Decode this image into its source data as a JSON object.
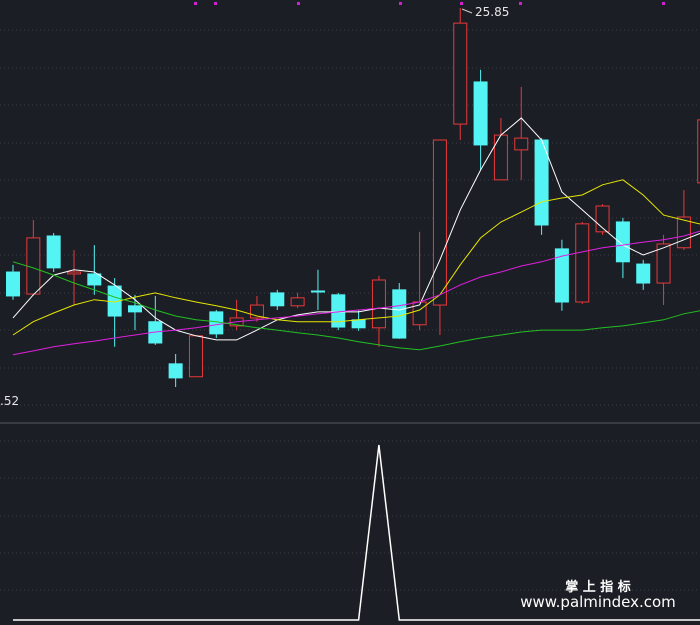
{
  "chart_data": [
    {
      "type": "candlestick",
      "open": [
        18.89,
        18.31,
        19.84,
        18.84,
        18.84,
        18.52,
        18.0,
        17.58,
        16.47,
        16.13,
        17.84,
        17.47,
        17.68,
        18.34,
        18.0,
        18.39,
        18.29,
        17.63,
        17.42,
        18.42,
        17.5,
        18.02,
        22.79,
        23.9,
        21.32,
        22.11,
        22.37,
        19.5,
        18.1,
        19.95,
        20.21,
        19.1,
        18.6,
        19.53,
        21.24
      ],
      "high": [
        19.08,
        20.26,
        19.92,
        19.47,
        19.6,
        18.73,
        18.29,
        18.26,
        16.73,
        17.21,
        17.89,
        18.16,
        18.26,
        18.42,
        18.34,
        18.95,
        18.34,
        17.89,
        18.79,
        18.6,
        19.95,
        22.37,
        25.85,
        24.22,
        22.95,
        23.77,
        22.42,
        19.74,
        20.21,
        20.68,
        20.32,
        19.21,
        19.87,
        21.05,
        23.03
      ],
      "low": [
        18.16,
        18.26,
        18.89,
        18.02,
        18.29,
        16.92,
        17.36,
        16.97,
        15.86,
        16.13,
        17.15,
        17.36,
        17.58,
        17.89,
        17.94,
        17.89,
        17.36,
        17.34,
        16.92,
        17.13,
        17.36,
        17.23,
        22.37,
        21.58,
        21.32,
        21.32,
        19.87,
        17.87,
        18.05,
        19.87,
        18.73,
        18.42,
        18.02,
        19.47,
        21.24
      ],
      "close": [
        18.26,
        19.79,
        19.0,
        18.89,
        18.55,
        17.73,
        17.84,
        17.02,
        16.1,
        17.21,
        17.26,
        17.68,
        18.02,
        18.0,
        18.21,
        18.37,
        17.44,
        17.42,
        18.68,
        17.15,
        18.1,
        22.37,
        25.45,
        22.24,
        22.5,
        22.42,
        20.13,
        18.1,
        20.16,
        20.63,
        19.16,
        18.6,
        19.63,
        20.34,
        22.9
      ],
      "up_color": "#e8393a",
      "down_color": "#54f4f4",
      "series": [
        {
          "color": "#ffffff",
          "values": [
            17.68,
            18.29,
            18.81,
            18.95,
            18.89,
            18.55,
            18.16,
            17.68,
            17.36,
            17.21,
            17.1,
            17.1,
            17.36,
            17.63,
            17.76,
            17.84,
            17.84,
            17.84,
            17.94,
            17.89,
            18.02,
            19.21,
            20.53,
            21.58,
            22.5,
            22.95,
            22.37,
            21.0,
            20.53,
            20.05,
            19.6,
            19.34,
            19.53,
            19.74,
            19.95
          ]
        },
        {
          "color": "#e6e600",
          "values": [
            17.23,
            17.58,
            17.81,
            18.02,
            18.16,
            18.1,
            18.23,
            18.34,
            18.21,
            18.1,
            18.0,
            17.89,
            17.73,
            17.63,
            17.58,
            17.58,
            17.58,
            17.63,
            17.68,
            17.73,
            17.89,
            18.29,
            19.08,
            19.79,
            20.21,
            20.47,
            20.74,
            20.84,
            20.92,
            21.19,
            21.32,
            20.92,
            20.39,
            20.26,
            20.13
          ]
        },
        {
          "color": "#e020e0",
          "values": [
            16.71,
            16.81,
            16.92,
            17.0,
            17.07,
            17.15,
            17.23,
            17.31,
            17.36,
            17.42,
            17.5,
            17.58,
            17.63,
            17.68,
            17.73,
            17.79,
            17.84,
            17.89,
            17.94,
            18.0,
            18.1,
            18.29,
            18.55,
            18.76,
            18.89,
            19.05,
            19.16,
            19.31,
            19.42,
            19.53,
            19.6,
            19.68,
            19.74,
            19.84,
            20.0
          ]
        },
        {
          "color": "#22c022",
          "values": [
            19.16,
            19.0,
            18.81,
            18.6,
            18.42,
            18.23,
            18.08,
            17.89,
            17.73,
            17.63,
            17.58,
            17.5,
            17.42,
            17.36,
            17.29,
            17.23,
            17.15,
            17.05,
            16.97,
            16.89,
            16.84,
            16.94,
            17.05,
            17.15,
            17.23,
            17.31,
            17.36,
            17.36,
            17.36,
            17.42,
            17.47,
            17.55,
            17.63,
            17.79,
            17.89
          ]
        }
      ],
      "annotations": [
        "25.85",
        ".52"
      ],
      "ylim": [
        14.99,
        26.06
      ]
    },
    {
      "type": "line",
      "color": "#ffffff",
      "values": [
        0,
        0,
        0,
        0,
        0,
        0,
        0,
        0,
        0,
        0,
        0,
        0,
        0,
        0,
        0,
        0,
        0,
        0,
        1,
        0,
        0,
        0,
        0,
        0,
        0,
        0,
        0,
        0,
        0,
        0,
        0,
        0,
        0,
        0,
        0
      ],
      "ylim": [
        0,
        1
      ]
    }
  ],
  "watermark": {
    "title": "掌 上 指 标",
    "url": "www.palmindex.com"
  }
}
